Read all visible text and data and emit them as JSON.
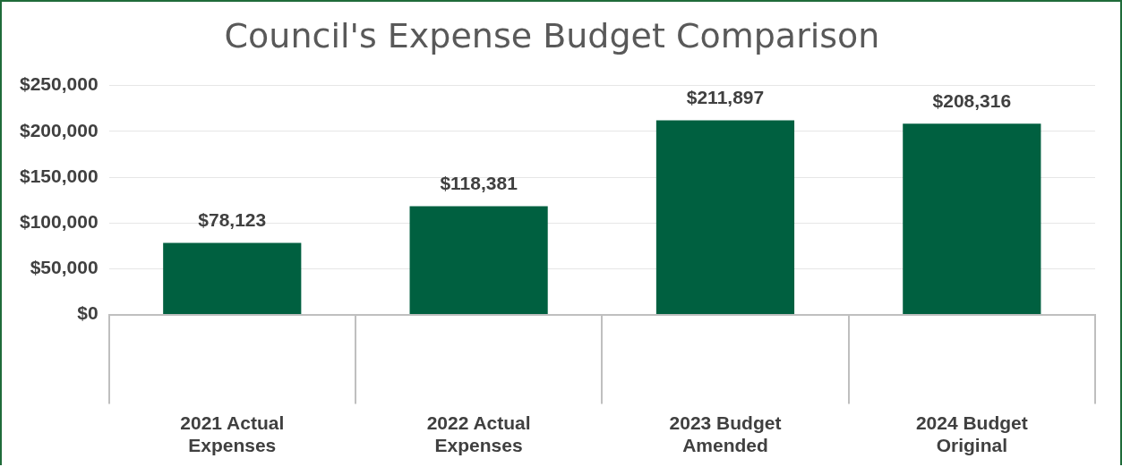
{
  "chart_data": {
    "type": "bar",
    "title": "Council's Expense Budget Comparison",
    "categories": [
      "2021 Actual Expenses",
      "2022 Actual Expenses",
      "2023 Budget Amended",
      "2024 Budget Original"
    ],
    "values": [
      78123,
      118381,
      211897,
      208316
    ],
    "value_labels": [
      "$78,123",
      "$118,381",
      "$211,897",
      "$208,316"
    ],
    "color": "#006040",
    "ylim": [
      0,
      250000
    ],
    "yticks": [
      {
        "value": 0,
        "label": "$0"
      },
      {
        "value": 50000,
        "label": "$50,000"
      },
      {
        "value": 100000,
        "label": "$100,000"
      },
      {
        "value": 150000,
        "label": "$150,000"
      },
      {
        "value": 200000,
        "label": "$200,000"
      },
      {
        "value": 250000,
        "label": "$250,000"
      }
    ],
    "grid": "y",
    "legend": false
  }
}
